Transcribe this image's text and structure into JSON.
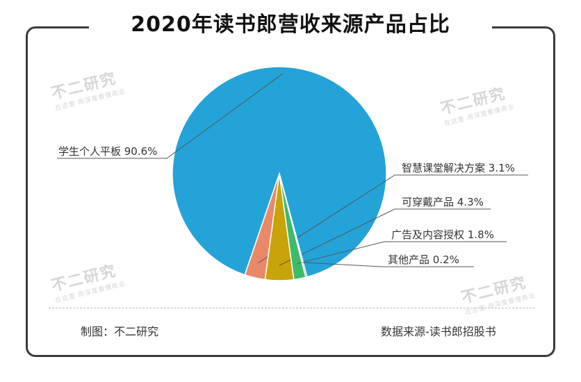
{
  "title": "2020年读书郎营收来源产品占比",
  "chart_data": {
    "type": "pie",
    "slices": [
      {
        "label": "学生个人平板",
        "value": 90.6,
        "display": "90.6%",
        "color": "#24a3d9"
      },
      {
        "label": "智慧课堂解决方案",
        "value": 3.1,
        "display": "3.1%",
        "color": "#e8896a"
      },
      {
        "label": "可穿戴产品",
        "value": 4.3,
        "display": "4.3%",
        "color": "#c9a30a"
      },
      {
        "label": "广告及内容授权",
        "value": 1.8,
        "display": "1.8%",
        "color": "#3dbb6a"
      },
      {
        "label": "其他产品",
        "value": 0.2,
        "display": "0.2%",
        "color": "#2a4a60"
      }
    ]
  },
  "watermark": {
    "brand": "不二研究",
    "tagline": "在这里 用深度看懂商业"
  },
  "footer": {
    "credit": "制图：不二研究",
    "source": "数据来源-读书郎招股书"
  }
}
